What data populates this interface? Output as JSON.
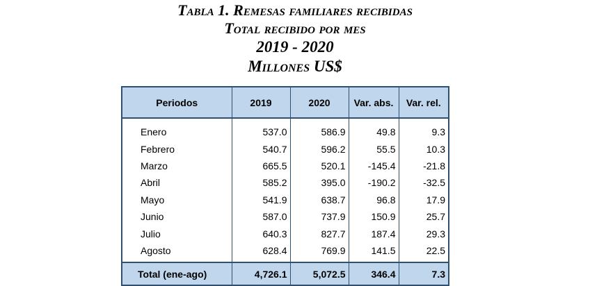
{
  "title": {
    "line1": "Tabla 1. Remesas familiares recibidas",
    "line2": "Total recibido por mes",
    "line3": "2019 - 2020",
    "line4": "Millones US$"
  },
  "table": {
    "headers": [
      "Periodos",
      "2019",
      "2020",
      "Var. abs.",
      "Var. rel."
    ],
    "rows": [
      [
        "Enero",
        "537.0",
        "586.9",
        "49.8",
        "9.3"
      ],
      [
        "Febrero",
        "540.7",
        "596.2",
        "55.5",
        "10.3"
      ],
      [
        "Marzo",
        "665.5",
        "520.1",
        "-145.4",
        "-21.8"
      ],
      [
        "Abril",
        "585.2",
        "395.0",
        "-190.2",
        "-32.5"
      ],
      [
        "Mayo",
        "541.9",
        "638.7",
        "96.8",
        "17.9"
      ],
      [
        "Junio",
        "587.0",
        "737.9",
        "150.9",
        "25.7"
      ],
      [
        "Julio",
        "640.3",
        "827.7",
        "187.4",
        "29.3"
      ],
      [
        "Agosto",
        "628.4",
        "769.9",
        "141.5",
        "22.5"
      ]
    ],
    "total": [
      "Total (ene-ago)",
      "4,726.1",
      "5,072.5",
      "346.4",
      "7.3"
    ]
  },
  "colors": {
    "header_fill": "#bfd6ec",
    "border": "#2f4f6f"
  }
}
